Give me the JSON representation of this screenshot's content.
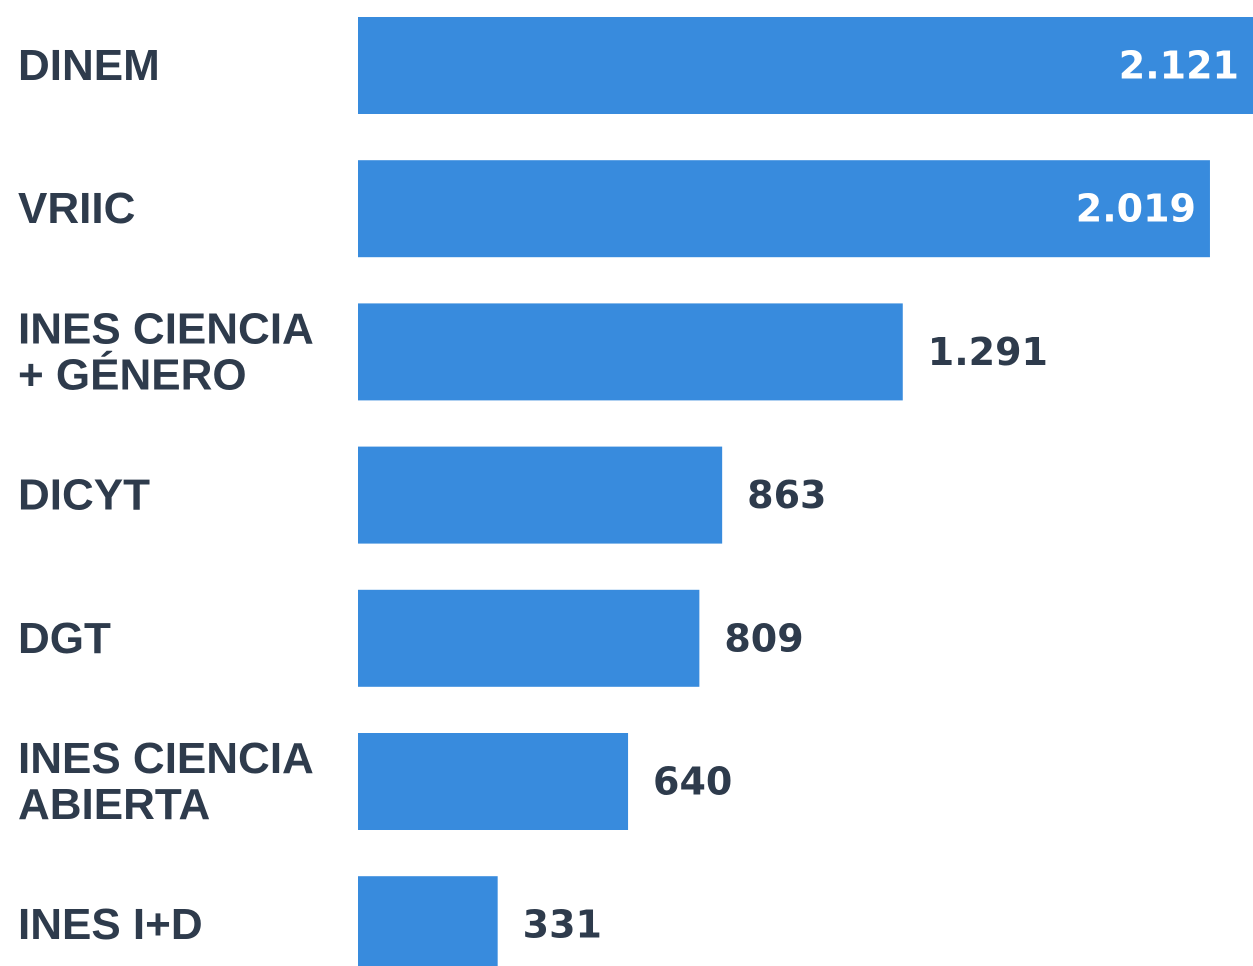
{
  "chart_data": {
    "type": "bar",
    "orientation": "horizontal",
    "categories": [
      [
        "DINEM"
      ],
      [
        "VRIIC"
      ],
      [
        "INES CIENCIA",
        "+ GÉNERO"
      ],
      [
        "DICYT"
      ],
      [
        "DGT"
      ],
      [
        "INES CIENCIA",
        "ABIERTA"
      ],
      [
        "INES I+D"
      ]
    ],
    "values": [
      2121,
      2019,
      1291,
      863,
      809,
      640,
      331
    ],
    "value_labels": [
      "2.121",
      "2.019",
      "1.291",
      "863",
      "809",
      "640",
      "331"
    ],
    "title": "",
    "xlabel": "",
    "ylabel": "",
    "grid": false,
    "legend": "none",
    "colors": {
      "bar": "#388bdd",
      "category_text": "#2e3b4c",
      "value_text_outside": "#2e3b4c",
      "value_text_inside": "#ffffff"
    }
  }
}
